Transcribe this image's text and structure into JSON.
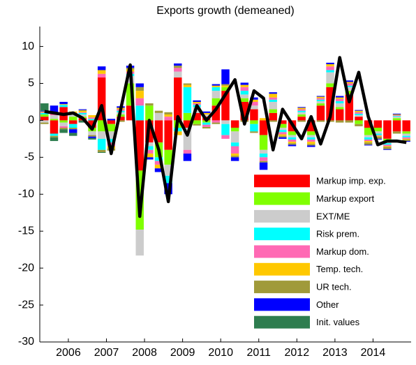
{
  "chart_data": {
    "type": "bar",
    "title": "Exports growth (demeaned)",
    "categories": [
      null,
      null,
      null,
      "2006",
      null,
      null,
      null,
      "2007",
      null,
      null,
      null,
      "2008",
      null,
      null,
      null,
      "2009",
      null,
      null,
      null,
      "2010",
      null,
      null,
      null,
      "2011",
      null,
      null,
      null,
      "2012",
      null,
      null,
      null,
      "2013",
      null,
      null,
      null,
      "2014",
      null,
      null,
      null
    ],
    "ylim": [
      -30,
      12.7
    ],
    "yticks": [
      -30,
      -25,
      -20,
      -15,
      -10,
      -5,
      0,
      5,
      10
    ],
    "legend": "lower right",
    "series": [
      {
        "name": "Markup imp. exp.",
        "color": "#ff0000",
        "values": [
          0.5,
          -1.8,
          1.8,
          -0.5,
          0.3,
          -1,
          5.8,
          -0.5,
          0.5,
          2,
          -6.8,
          -3,
          -3,
          -4,
          5.8,
          -1,
          1,
          0.5,
          2,
          4,
          -1,
          2.5,
          1.5,
          -2,
          1,
          -0.5,
          -1.5,
          0.5,
          -1.5,
          2,
          4.5,
          1.5,
          3.5,
          0.5,
          -1,
          -1,
          -2.5,
          -1.5,
          -1.5
        ]
      },
      {
        "name": "Markup export",
        "color": "#80ff00",
        "values": [
          0.3,
          0.2,
          -0.3,
          0.5,
          0.2,
          -0.5,
          -1.5,
          -1,
          0.3,
          3,
          -8,
          2,
          -2,
          -2,
          -1,
          1,
          -0.5,
          -0.3,
          1,
          0.5,
          -0.5,
          0.5,
          -0.5,
          -2,
          0.5,
          -0.5,
          -0.5,
          0.3,
          -0.5,
          0.3,
          0.5,
          0.3,
          0.5,
          -0.5,
          -1,
          -0.5,
          -0.3,
          0.3,
          -0.3
        ]
      },
      {
        "name": "EXT/ME",
        "color": "#cccccc",
        "values": [
          -0.3,
          0.5,
          -0.5,
          0.3,
          0.3,
          -0.5,
          -1,
          -1,
          0.3,
          1,
          -3.5,
          -0.5,
          1,
          -1.5,
          0.8,
          -3,
          0.8,
          0.3,
          1,
          -0.5,
          -1.5,
          0.5,
          0.5,
          -0.5,
          1,
          -0.3,
          -0.3,
          0.3,
          -0.3,
          0.3,
          1.5,
          0.5,
          0.5,
          0.2,
          -0.3,
          -0.3,
          -0.3,
          0.2,
          -0.3
        ]
      },
      {
        "name": "Risk prem.",
        "color": "#00ffff",
        "values": [
          0.2,
          -0.3,
          0.3,
          -0.5,
          0.2,
          0.2,
          -1.5,
          -0.5,
          0.2,
          0.3,
          2,
          -0.5,
          -0.5,
          -1,
          -0.5,
          3.5,
          0.3,
          -0.3,
          0.5,
          -1.5,
          -0.5,
          0.5,
          -1,
          -0.5,
          0.3,
          -0.3,
          -0.3,
          0.2,
          -0.3,
          0.2,
          0.3,
          0.3,
          0.2,
          0.2,
          -0.3,
          -0.2,
          -0.2,
          0.1,
          -0.2
        ]
      },
      {
        "name": "Markup dom.",
        "color": "#ff69b4",
        "values": [
          0.1,
          0.2,
          -0.2,
          0.2,
          0.1,
          0.2,
          0.5,
          -0.5,
          0.2,
          0.3,
          1,
          -0.5,
          -0.5,
          0.5,
          0.5,
          -0.5,
          0.2,
          -0.3,
          -0.3,
          -0.5,
          -1,
          0.5,
          0.5,
          -0.5,
          0.3,
          -0.3,
          -0.3,
          0.2,
          -0.3,
          0.2,
          0.5,
          0.3,
          0.3,
          0.2,
          -0.2,
          -0.1,
          -0.2,
          0.1,
          -0.2
        ]
      },
      {
        "name": "Temp. tech.",
        "color": "#ffc800",
        "values": [
          0.1,
          0.1,
          0.1,
          0.2,
          0.2,
          0.3,
          0.5,
          -0.3,
          0.2,
          0.3,
          1,
          -0.5,
          -0.5,
          0.3,
          -0.5,
          0.3,
          0.2,
          0.2,
          0.2,
          0.2,
          -0.3,
          0.3,
          0.3,
          0.3,
          0.5,
          -0.2,
          -0.2,
          0.2,
          -0.3,
          0.2,
          0.3,
          0.2,
          0.2,
          0.2,
          -0.2,
          -0.1,
          -0.1,
          0.1,
          -0.1
        ]
      },
      {
        "name": "UR tech.",
        "color": "#a09a3a",
        "values": [
          -0.2,
          -0.2,
          -0.2,
          -0.2,
          0.1,
          -0.2,
          -0.3,
          -0.3,
          -0.2,
          0.2,
          0.5,
          0.3,
          0.3,
          0.3,
          0.3,
          0.2,
          -0.2,
          -0.2,
          -0.2,
          0.2,
          -0.2,
          -0.2,
          -0.2,
          -0.2,
          -0.2,
          -0.2,
          -0.2,
          -0.2,
          -0.2,
          -0.2,
          -0.2,
          -0.3,
          -0.3,
          -0.3,
          -0.3,
          -0.3,
          -0.3,
          -0.3,
          -0.2
        ]
      },
      {
        "name": "Other",
        "color": "#0000ff",
        "values": [
          0.1,
          1,
          0.3,
          -0.5,
          0.1,
          -0.2,
          0.5,
          0.2,
          0.2,
          0.3,
          0.5,
          -0.3,
          -0.5,
          -1.5,
          0.3,
          -1,
          0.2,
          0.2,
          0.2,
          2,
          -0.5,
          0.3,
          0.3,
          -1,
          0.2,
          -0.2,
          -0.2,
          0.1,
          -0.2,
          0.1,
          0.2,
          0.2,
          0.2,
          0.1,
          -0.1,
          -0.1,
          -0.1,
          0.1,
          -0.1
        ]
      },
      {
        "name": "Init. values",
        "color": "#2e7d4f",
        "values": [
          1,
          -0.5,
          -0.5,
          -0.4,
          -0.3,
          -0.2,
          -0.1,
          0,
          0,
          0,
          0,
          0,
          0,
          0,
          0,
          0,
          0,
          0,
          0,
          0,
          0,
          0,
          0,
          0,
          0,
          0,
          0,
          0,
          0,
          0,
          0,
          0,
          0,
          0,
          0,
          0,
          0,
          0,
          0
        ]
      }
    ],
    "line": {
      "color": "#000000",
      "values": [
        1.2,
        1.0,
        0.8,
        1.0,
        0.3,
        -1.2,
        2.0,
        -4.5,
        1.5,
        7.5,
        -13,
        0,
        -4,
        -11,
        0.5,
        -2,
        2,
        0,
        1.5,
        3.5,
        5.5,
        -0.5,
        4,
        3,
        -4,
        1.5,
        -0.5,
        -2.5,
        0.5,
        -3.2,
        0.5,
        8.5,
        2.5,
        6.5,
        0.5,
        -3.3,
        -2.8,
        -2.8,
        -3
      ]
    }
  }
}
